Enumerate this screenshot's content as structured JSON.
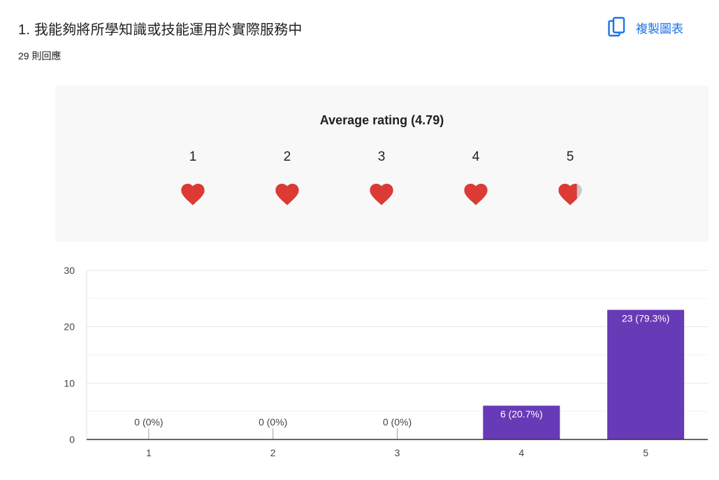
{
  "question": {
    "title": "1. 我能夠將所學知識或技能運用於實際服務中",
    "response_count": "29 則回應"
  },
  "toolbar": {
    "copy_label": "複製圖表",
    "copy_icon": "copy-icon",
    "accent_color": "#1a73e8"
  },
  "rating": {
    "average_label": "Average rating (4.79)",
    "average": 4.79,
    "scale": [
      "1",
      "2",
      "3",
      "4",
      "5"
    ],
    "icon": "heart-icon",
    "filled_color": "#db3b34",
    "empty_color": "#c8c8c8"
  },
  "chart_data": {
    "type": "bar",
    "categories": [
      "1",
      "2",
      "3",
      "4",
      "5"
    ],
    "values": [
      0,
      0,
      0,
      6,
      23
    ],
    "data_labels": [
      "0 (0%)",
      "0 (0%)",
      "0 (0%)",
      "6 (20.7%)",
      "23 (79.3%)"
    ],
    "y_ticks": [
      "0",
      "10",
      "20",
      "30"
    ],
    "ylim": [
      0,
      30
    ],
    "grid": true,
    "bar_color": "#673ab7",
    "title": "",
    "xlabel": "",
    "ylabel": ""
  }
}
